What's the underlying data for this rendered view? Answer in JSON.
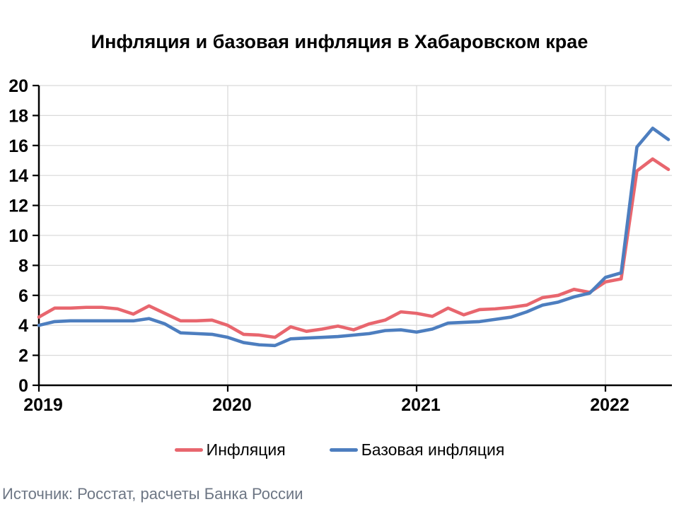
{
  "footer": {
    "source": "Источник: Росстат, расчеты Банка России"
  },
  "colors": {
    "axis": "#000000",
    "grid": "#d9d9d9",
    "inflation": "#e8666e",
    "core_inflation": "#4d7ebf",
    "source_text": "#6d7684"
  },
  "chart_data": {
    "type": "line",
    "title": "Инфляция и базовая инфляция в Хабаровском крае",
    "x": [
      "2019-01",
      "2019-02",
      "2019-03",
      "2019-04",
      "2019-05",
      "2019-06",
      "2019-07",
      "2019-08",
      "2019-09",
      "2019-10",
      "2019-11",
      "2019-12",
      "2020-01",
      "2020-02",
      "2020-03",
      "2020-04",
      "2020-05",
      "2020-06",
      "2020-07",
      "2020-08",
      "2020-09",
      "2020-10",
      "2020-11",
      "2020-12",
      "2021-01",
      "2021-02",
      "2021-03",
      "2021-04",
      "2021-05",
      "2021-06",
      "2021-07",
      "2021-08",
      "2021-09",
      "2021-10",
      "2021-11",
      "2021-12",
      "2022-01",
      "2022-02",
      "2022-03",
      "2022-04",
      "2022-05"
    ],
    "x_axis_tick_labels": [
      "2019",
      "2020",
      "2021",
      "2022"
    ],
    "x_axis_tick_indices": [
      0,
      12,
      24,
      36
    ],
    "ylim": [
      0,
      20
    ],
    "yticks": [
      0,
      2,
      4,
      6,
      8,
      10,
      12,
      14,
      16,
      18,
      20
    ],
    "grid": true,
    "legend_position": "bottom",
    "series": [
      {
        "name": "Инфляция",
        "color": "#e8666e",
        "values": [
          4.55,
          5.15,
          5.15,
          5.2,
          5.2,
          5.1,
          4.75,
          5.3,
          4.8,
          4.3,
          4.3,
          4.35,
          4.0,
          3.4,
          3.35,
          3.2,
          3.9,
          3.6,
          3.75,
          3.95,
          3.7,
          4.1,
          4.35,
          4.9,
          4.8,
          4.6,
          5.15,
          4.7,
          5.05,
          5.1,
          5.2,
          5.35,
          5.85,
          6.0,
          6.4,
          6.2,
          6.9,
          7.1,
          14.3,
          15.1,
          14.4
        ]
      },
      {
        "name": "Базовая инфляция",
        "color": "#4d7ebf",
        "values": [
          4.0,
          4.25,
          4.3,
          4.3,
          4.3,
          4.3,
          4.3,
          4.45,
          4.1,
          3.5,
          3.45,
          3.4,
          3.2,
          2.85,
          2.7,
          2.65,
          3.1,
          3.15,
          3.2,
          3.25,
          3.35,
          3.45,
          3.65,
          3.7,
          3.55,
          3.75,
          4.15,
          4.2,
          4.25,
          4.4,
          4.55,
          4.9,
          5.35,
          5.55,
          5.9,
          6.15,
          7.2,
          7.5,
          15.9,
          17.15,
          16.4
        ]
      }
    ]
  }
}
